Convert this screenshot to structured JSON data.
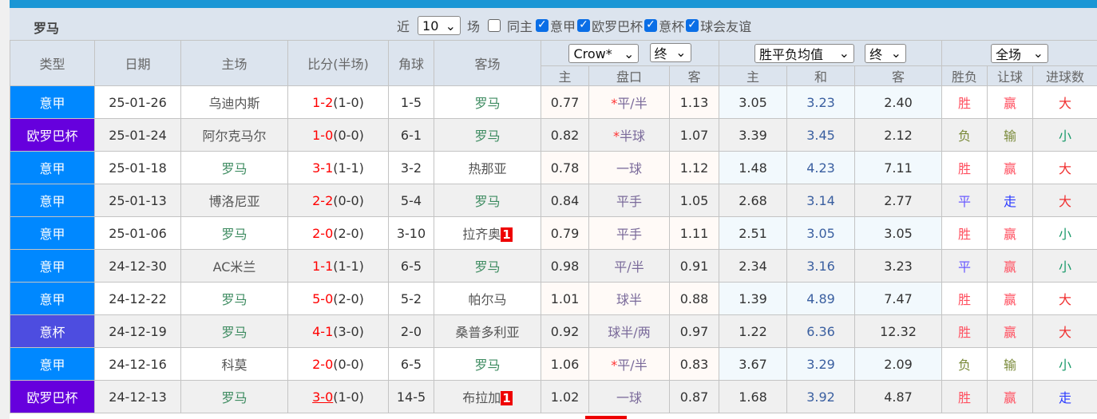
{
  "team": "罗马",
  "filters": {
    "recent_label": "近",
    "count": "10",
    "unit": "场",
    "same_home": "同主",
    "same_home_checked": false,
    "competitions": [
      {
        "label": "意甲",
        "checked": true
      },
      {
        "label": "欧罗巴杯",
        "checked": true
      },
      {
        "label": "意杯",
        "checked": true
      },
      {
        "label": "球会友谊",
        "checked": true
      }
    ]
  },
  "headers": {
    "type": "类型",
    "date": "日期",
    "home": "主场",
    "score": "比分(半场)",
    "corner": "角球",
    "away": "客场",
    "ah_company": "Crow*",
    "ah_stage": "终",
    "eu_company": "胜平负均值",
    "eu_stage": "终",
    "result_scope": "全场",
    "ah_home": "主",
    "ah_line": "盘口",
    "ah_away": "客",
    "eu_home": "主",
    "eu_draw": "和",
    "eu_away": "客",
    "res_wl": "胜负",
    "res_ah": "让球",
    "res_ou": "进球数"
  },
  "colors": {
    "serie_a": "#0088ff",
    "europa": "#6600dd",
    "coppa": "#4d4de0",
    "topbar": "#1a96d5"
  },
  "rows": [
    {
      "type": "意甲",
      "tc": "#0088ff",
      "date": "25-01-26",
      "home": "乌迪内斯",
      "score": "1-2",
      "half": "(1-0)",
      "corner": "1-5",
      "away": "罗马",
      "card": "",
      "h": "0.77",
      "star": "*",
      "line": "平/半",
      "a": "1.13",
      "e1": "3.05",
      "e2": "3.23",
      "e3": "2.40",
      "wl": "胜",
      "ah": "赢",
      "ou": "大"
    },
    {
      "type": "欧罗巴杯",
      "tc": "#6600dd",
      "date": "25-01-24",
      "home": "阿尔克马尔",
      "score": "1-0",
      "half": "(0-0)",
      "corner": "6-1",
      "away": "罗马",
      "card": "",
      "h": "0.82",
      "star": "*",
      "line": "半球",
      "a": "1.07",
      "e1": "3.39",
      "e2": "3.45",
      "e3": "2.12",
      "wl": "负",
      "ah": "输",
      "ou": "小"
    },
    {
      "type": "意甲",
      "tc": "#0088ff",
      "date": "25-01-18",
      "home": "罗马",
      "score": "3-1",
      "half": "(1-1)",
      "corner": "3-2",
      "away": "热那亚",
      "card": "",
      "h": "0.78",
      "star": "",
      "line": "一球",
      "a": "1.12",
      "e1": "1.48",
      "e2": "4.23",
      "e3": "7.11",
      "wl": "胜",
      "ah": "赢",
      "ou": "大"
    },
    {
      "type": "意甲",
      "tc": "#0088ff",
      "date": "25-01-13",
      "home": "博洛尼亚",
      "score": "2-2",
      "half": "(0-0)",
      "corner": "5-4",
      "away": "罗马",
      "card": "",
      "h": "0.84",
      "star": "",
      "line": "平手",
      "a": "1.05",
      "e1": "2.68",
      "e2": "3.14",
      "e3": "2.77",
      "wl": "平",
      "ah": "走",
      "ou": "大"
    },
    {
      "type": "意甲",
      "tc": "#0088ff",
      "date": "25-01-06",
      "home": "罗马",
      "score": "2-0",
      "half": "(2-0)",
      "corner": "3-10",
      "away": "拉齐奥",
      "card": "1",
      "h": "0.79",
      "star": "",
      "line": "平手",
      "a": "1.11",
      "e1": "2.51",
      "e2": "3.05",
      "e3": "3.05",
      "wl": "胜",
      "ah": "赢",
      "ou": "小"
    },
    {
      "type": "意甲",
      "tc": "#0088ff",
      "date": "24-12-30",
      "home": "AC米兰",
      "score": "1-1",
      "half": "(1-1)",
      "corner": "6-5",
      "away": "罗马",
      "card": "",
      "h": "0.98",
      "star": "",
      "line": "平/半",
      "a": "0.91",
      "e1": "2.34",
      "e2": "3.16",
      "e3": "3.23",
      "wl": "平",
      "ah": "赢",
      "ou": "小"
    },
    {
      "type": "意甲",
      "tc": "#0088ff",
      "date": "24-12-22",
      "home": "罗马",
      "score": "5-0",
      "half": "(2-0)",
      "corner": "5-2",
      "away": "帕尔马",
      "card": "",
      "h": "1.01",
      "star": "",
      "line": "球半",
      "a": "0.88",
      "e1": "1.39",
      "e2": "4.89",
      "e3": "7.47",
      "wl": "胜",
      "ah": "赢",
      "ou": "大"
    },
    {
      "type": "意杯",
      "tc": "#4d4de0",
      "date": "24-12-19",
      "home": "罗马",
      "score": "4-1",
      "half": "(3-0)",
      "corner": "2-0",
      "away": "桑普多利亚",
      "card": "",
      "h": "0.92",
      "star": "",
      "line": "球半/两",
      "a": "0.97",
      "e1": "1.22",
      "e2": "6.36",
      "e3": "12.32",
      "wl": "胜",
      "ah": "赢",
      "ou": "大"
    },
    {
      "type": "意甲",
      "tc": "#0088ff",
      "date": "24-12-16",
      "home": "科莫",
      "score": "2-0",
      "half": "(0-0)",
      "corner": "6-5",
      "away": "罗马",
      "card": "",
      "h": "1.06",
      "star": "*",
      "line": "平/半",
      "a": "0.83",
      "e1": "3.67",
      "e2": "3.29",
      "e3": "2.09",
      "wl": "负",
      "ah": "输",
      "ou": "小"
    },
    {
      "type": "欧罗巴杯",
      "tc": "#6600dd",
      "date": "24-12-13",
      "home": "罗马",
      "score": "3-0",
      "half": "(1-0)",
      "corner": "14-5",
      "away": "布拉加",
      "card": "1",
      "h": "1.02",
      "star": "",
      "line": "一球",
      "a": "0.87",
      "e1": "1.68",
      "e2": "3.92",
      "e3": "4.87",
      "wl": "胜",
      "ah": "赢",
      "ou": "走",
      "underline": true
    }
  ]
}
